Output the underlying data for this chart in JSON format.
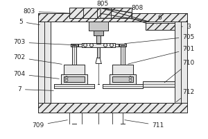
{
  "bg_color": "#ffffff",
  "line_color": "#2a2a2a",
  "gray_fill": "#c8c8c8",
  "light_fill": "#e8e8e8",
  "mid_fill": "#b0b0b0",
  "label_fontsize": 6.5,
  "line_width": 0.7,
  "annot_lw": 0.5,
  "annot_color": "#222222"
}
